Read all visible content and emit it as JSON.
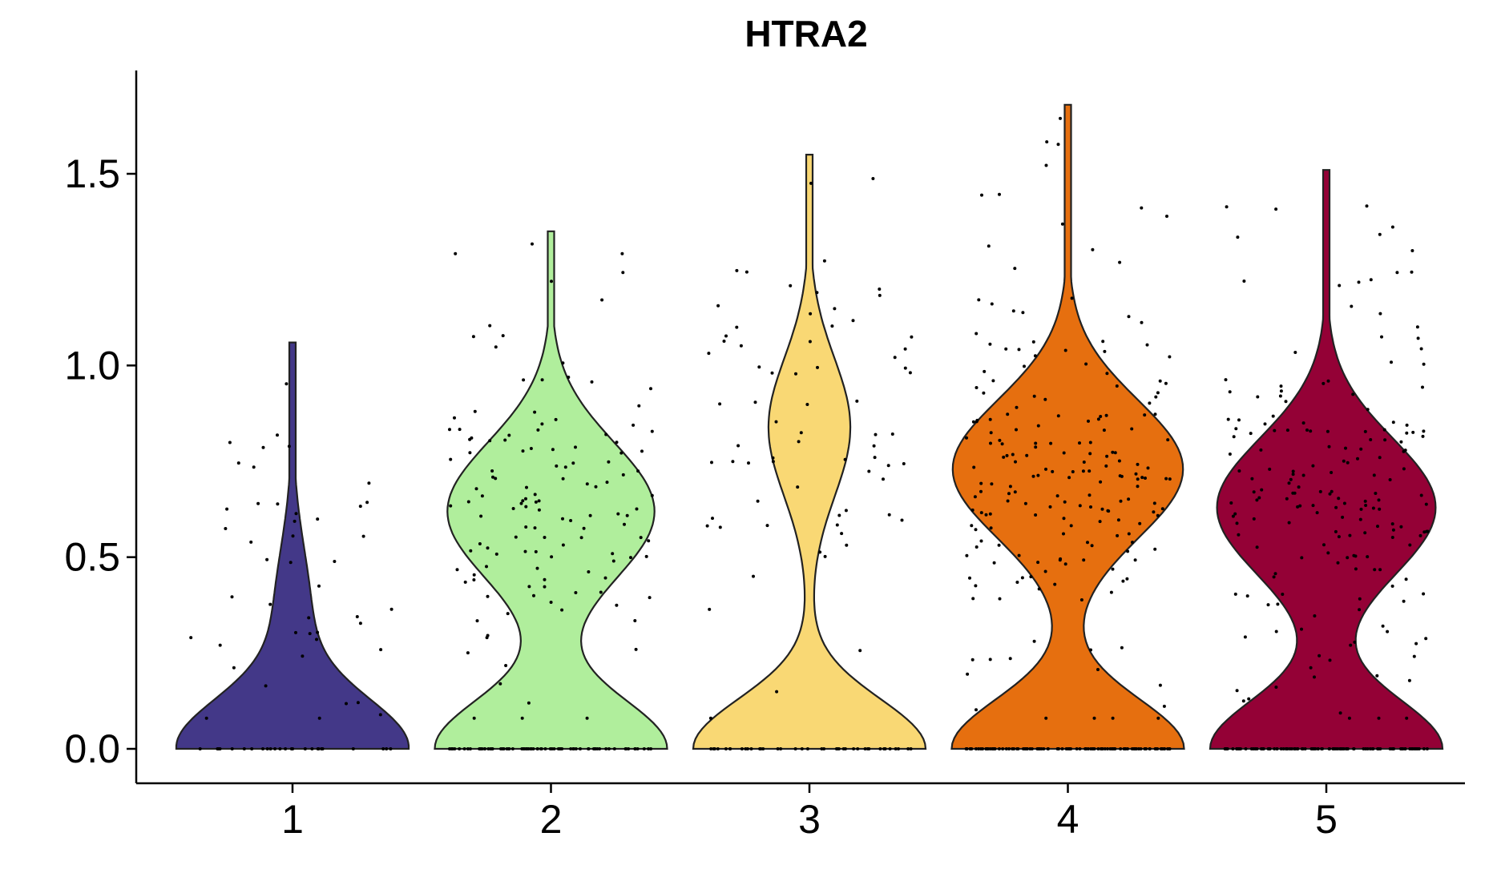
{
  "chart_data": {
    "type": "violin",
    "title": "HTRA2",
    "xlabel": "",
    "ylabel": "",
    "ylim": [
      -0.08,
      1.76
    ],
    "yticks": [
      0.0,
      0.5,
      1.0,
      1.5
    ],
    "ytick_labels": [
      "0.0",
      "0.5",
      "1.0",
      "1.5"
    ],
    "categories": [
      "1",
      "2",
      "3",
      "4",
      "5"
    ],
    "grid": false,
    "legend": "none",
    "series": [
      {
        "category": "1",
        "color": "#433888",
        "max": 1.06,
        "mode_low": 0.0,
        "mode_high": 0.35,
        "upper_mode_weight": 0.15,
        "points": 70
      },
      {
        "category": "2",
        "color": "#b0ee9c",
        "max": 1.35,
        "mode_low": 0.0,
        "mode_high": 0.62,
        "upper_mode_weight": 0.9,
        "points": 200
      },
      {
        "category": "3",
        "color": "#f9d874",
        "max": 1.55,
        "mode_low": 0.0,
        "mode_high": 0.84,
        "upper_mode_weight": 0.35,
        "points": 110
      },
      {
        "category": "4",
        "color": "#e66f0f",
        "max": 1.68,
        "mode_low": 0.0,
        "mode_high": 0.73,
        "upper_mode_weight": 1.0,
        "points": 300
      },
      {
        "category": "5",
        "color": "#940136",
        "max": 1.51,
        "mode_low": 0.0,
        "mode_high": 0.63,
        "upper_mode_weight": 0.95,
        "points": 280
      }
    ]
  }
}
